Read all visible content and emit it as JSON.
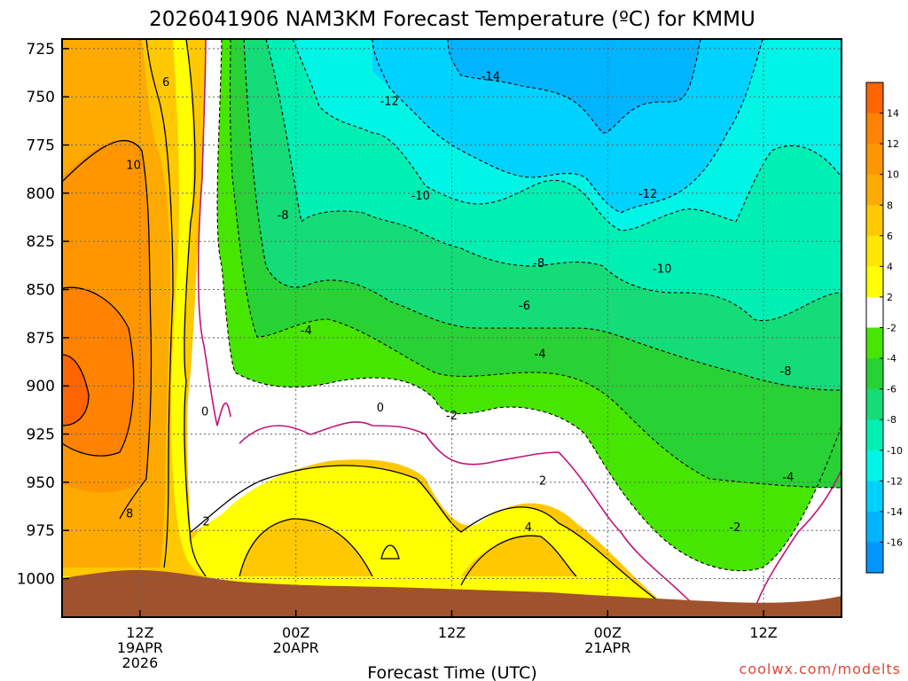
{
  "chart_data": {
    "type": "heatmap",
    "title": "2026041906 NAM3KM Forecast Temperature (ºC) for KMMU",
    "xlabel": "Forecast Time (UTC)",
    "ylabel": "",
    "credit": "coolwx.com/modelts",
    "y_axis": {
      "ticks": [
        "725",
        "750",
        "775",
        "800",
        "825",
        "850",
        "875",
        "900",
        "925",
        "950",
        "975",
        "1000"
      ],
      "ylim": [
        1020,
        720
      ]
    },
    "x_axis": {
      "ticks": [
        {
          "hour": 12,
          "lines": [
            "12Z",
            "19APR",
            "2026"
          ]
        },
        {
          "hour": 24,
          "lines": [
            "00Z",
            "20APR"
          ]
        },
        {
          "hour": 36,
          "lines": [
            "12Z"
          ]
        },
        {
          "hour": 48,
          "lines": [
            "00Z",
            "21APR"
          ]
        },
        {
          "hour": 60,
          "lines": [
            "12Z"
          ]
        }
      ],
      "xlim": [
        6,
        66
      ]
    },
    "colorbar": {
      "labels": [
        "14",
        "12",
        "10",
        "8",
        "6",
        "4",
        "2",
        "-2",
        "-4",
        "-6",
        "-8",
        "-10",
        "-12",
        "-14",
        "-16"
      ],
      "colors": [
        "#ff6400",
        "#ff8200",
        "#ff9600",
        "#ffaa00",
        "#ffc800",
        "#ffe600",
        "#ffff00",
        "#ffffff",
        "#46e600",
        "#28d234",
        "#14dc78",
        "#00f0b4",
        "#00f5e6",
        "#00d2ff",
        "#00b4ff",
        "#0096ff"
      ]
    },
    "contour_labels": [
      {
        "text": "6",
        "hour": 14.0,
        "p": 742
      },
      {
        "text": "10",
        "hour": 11.5,
        "p": 785
      },
      {
        "text": "8",
        "hour": 11.2,
        "p": 966
      },
      {
        "text": "2",
        "hour": 17.1,
        "p": 970
      },
      {
        "text": "0",
        "hour": 17.0,
        "p": 913
      },
      {
        "text": "0",
        "hour": 30.5,
        "p": 911
      },
      {
        "text": "-2",
        "hour": 36.0,
        "p": 915
      },
      {
        "text": "2",
        "hour": 43.0,
        "p": 949
      },
      {
        "text": "4",
        "hour": 41.9,
        "p": 973
      },
      {
        "text": "-4",
        "hour": 24.8,
        "p": 871
      },
      {
        "text": "-8",
        "hour": 23.0,
        "p": 811
      },
      {
        "text": "-10",
        "hour": 33.6,
        "p": 801
      },
      {
        "text": "-12",
        "hour": 31.2,
        "p": 752
      },
      {
        "text": "-14",
        "hour": 39.0,
        "p": 739
      },
      {
        "text": "-8",
        "hour": 42.7,
        "p": 836
      },
      {
        "text": "-6",
        "hour": 41.6,
        "p": 858
      },
      {
        "text": "-4",
        "hour": 42.8,
        "p": 883
      },
      {
        "text": "-10",
        "hour": 52.2,
        "p": 839
      },
      {
        "text": "-12",
        "hour": 51.1,
        "p": 800
      },
      {
        "text": "-8",
        "hour": 61.7,
        "p": 892
      },
      {
        "text": "-4",
        "hour": 61.9,
        "p": 947
      },
      {
        "text": "-2",
        "hour": 57.8,
        "p": 973
      }
    ]
  }
}
